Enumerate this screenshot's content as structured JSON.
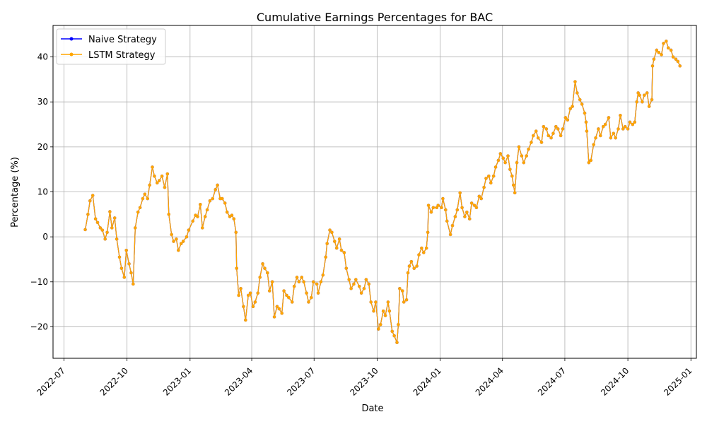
{
  "chart_data": {
    "type": "line",
    "title": "Cumulative Earnings Percentages for BAC",
    "xlabel": "Date",
    "ylabel": "Percentage (%)",
    "xlim": [
      "2022-06-15",
      "2025-01-09"
    ],
    "ylim": [
      -27,
      47
    ],
    "x_ticks": [
      "2022-07",
      "2022-10",
      "2023-01",
      "2023-04",
      "2023-07",
      "2023-10",
      "2024-01",
      "2024-04",
      "2024-07",
      "2024-10",
      "2025-01"
    ],
    "y_ticks": [
      -20,
      -10,
      0,
      10,
      20,
      30,
      40
    ],
    "grid": true,
    "legend_position": "upper-left",
    "series": [
      {
        "name": "Naive Strategy",
        "color": "#0000ff",
        "marker": "circle",
        "points": [
          [
            "2022-08-01",
            1.6
          ],
          [
            "2022-08-05",
            5.0
          ],
          [
            "2022-08-08",
            8.0
          ],
          [
            "2022-08-12",
            9.2
          ],
          [
            "2022-08-16",
            4.0
          ],
          [
            "2022-08-19",
            3.2
          ],
          [
            "2022-08-23",
            2.0
          ],
          [
            "2022-08-26",
            1.5
          ],
          [
            "2022-08-30",
            -0.5
          ],
          [
            "2022-09-02",
            1.0
          ],
          [
            "2022-09-06",
            5.6
          ],
          [
            "2022-09-09",
            2.0
          ],
          [
            "2022-09-13",
            4.2
          ],
          [
            "2022-09-16",
            -0.5
          ],
          [
            "2022-09-20",
            -4.5
          ],
          [
            "2022-09-23",
            -7.0
          ],
          [
            "2022-09-27",
            -9.0
          ],
          [
            "2022-09-30",
            -3.0
          ],
          [
            "2022-10-04",
            -6.0
          ],
          [
            "2022-10-07",
            -8.0
          ],
          [
            "2022-10-10",
            -10.5
          ],
          [
            "2022-10-13",
            2.0
          ],
          [
            "2022-10-17",
            5.5
          ],
          [
            "2022-10-20",
            6.5
          ],
          [
            "2022-10-24",
            8.5
          ],
          [
            "2022-10-27",
            9.5
          ],
          [
            "2022-10-31",
            8.5
          ],
          [
            "2022-11-03",
            11.5
          ],
          [
            "2022-11-07",
            15.5
          ],
          [
            "2022-11-10",
            13.5
          ],
          [
            "2022-11-14",
            12.0
          ],
          [
            "2022-11-17",
            12.5
          ],
          [
            "2022-11-21",
            13.5
          ],
          [
            "2022-11-25",
            11.0
          ],
          [
            "2022-11-29",
            14.0
          ],
          [
            "2022-12-01",
            5.0
          ],
          [
            "2022-12-05",
            0.5
          ],
          [
            "2022-12-08",
            -1.0
          ],
          [
            "2022-12-12",
            -0.5
          ],
          [
            "2022-12-15",
            -3.0
          ],
          [
            "2022-12-19",
            -1.5
          ],
          [
            "2022-12-22",
            -1.0
          ],
          [
            "2022-12-27",
            0.0
          ],
          [
            "2022-12-30",
            1.5
          ],
          [
            "2023-01-05",
            3.5
          ],
          [
            "2023-01-09",
            4.8
          ],
          [
            "2023-01-12",
            4.5
          ],
          [
            "2023-01-16",
            7.2
          ],
          [
            "2023-01-19",
            2.0
          ],
          [
            "2023-01-23",
            4.5
          ],
          [
            "2023-01-26",
            6.0
          ],
          [
            "2023-01-30",
            8.0
          ],
          [
            "2023-02-03",
            8.5
          ],
          [
            "2023-02-07",
            10.5
          ],
          [
            "2023-02-10",
            11.5
          ],
          [
            "2023-02-14",
            8.5
          ],
          [
            "2023-02-17",
            8.5
          ],
          [
            "2023-02-21",
            7.5
          ],
          [
            "2023-02-24",
            5.5
          ],
          [
            "2023-02-28",
            4.5
          ],
          [
            "2023-03-03",
            4.8
          ],
          [
            "2023-03-06",
            4.0
          ],
          [
            "2023-03-09",
            1.0
          ],
          [
            "2023-03-10",
            -7.0
          ],
          [
            "2023-03-13",
            -13.0
          ],
          [
            "2023-03-16",
            -11.5
          ],
          [
            "2023-03-20",
            -15.5
          ],
          [
            "2023-03-23",
            -18.5
          ],
          [
            "2023-03-27",
            -13.0
          ],
          [
            "2023-03-30",
            -12.5
          ],
          [
            "2023-04-03",
            -15.5
          ],
          [
            "2023-04-06",
            -14.5
          ],
          [
            "2023-04-10",
            -12.5
          ],
          [
            "2023-04-13",
            -9.0
          ],
          [
            "2023-04-17",
            -6.0
          ],
          [
            "2023-04-20",
            -7.0
          ],
          [
            "2023-04-24",
            -8.0
          ],
          [
            "2023-04-27",
            -12.0
          ],
          [
            "2023-05-01",
            -10.0
          ],
          [
            "2023-05-04",
            -17.8
          ],
          [
            "2023-05-08",
            -15.5
          ],
          [
            "2023-05-11",
            -16.0
          ],
          [
            "2023-05-15",
            -17.0
          ],
          [
            "2023-05-18",
            -12.0
          ],
          [
            "2023-05-22",
            -13.0
          ],
          [
            "2023-05-25",
            -13.5
          ],
          [
            "2023-05-30",
            -14.5
          ],
          [
            "2023-06-02",
            -11.0
          ],
          [
            "2023-06-06",
            -9.0
          ],
          [
            "2023-06-09",
            -10.0
          ],
          [
            "2023-06-13",
            -9.0
          ],
          [
            "2023-06-16",
            -10.0
          ],
          [
            "2023-06-20",
            -12.5
          ],
          [
            "2023-06-23",
            -14.5
          ],
          [
            "2023-06-27",
            -13.5
          ],
          [
            "2023-06-30",
            -10.0
          ],
          [
            "2023-07-05",
            -10.5
          ],
          [
            "2023-07-07",
            -12.5
          ],
          [
            "2023-07-11",
            -10.0
          ],
          [
            "2023-07-14",
            -8.5
          ],
          [
            "2023-07-18",
            -4.5
          ],
          [
            "2023-07-20",
            -1.5
          ],
          [
            "2023-07-24",
            1.5
          ],
          [
            "2023-07-27",
            1.0
          ],
          [
            "2023-07-31",
            -1.0
          ],
          [
            "2023-08-03",
            -2.5
          ],
          [
            "2023-08-07",
            -0.5
          ],
          [
            "2023-08-10",
            -3.0
          ],
          [
            "2023-08-14",
            -3.5
          ],
          [
            "2023-08-17",
            -7.0
          ],
          [
            "2023-08-21",
            -9.5
          ],
          [
            "2023-08-24",
            -11.5
          ],
          [
            "2023-08-28",
            -10.5
          ],
          [
            "2023-08-31",
            -9.5
          ],
          [
            "2023-09-05",
            -11.0
          ],
          [
            "2023-09-08",
            -12.5
          ],
          [
            "2023-09-12",
            -11.5
          ],
          [
            "2023-09-15",
            -9.5
          ],
          [
            "2023-09-19",
            -10.5
          ],
          [
            "2023-09-22",
            -14.5
          ],
          [
            "2023-09-26",
            -16.5
          ],
          [
            "2023-09-29",
            -14.5
          ],
          [
            "2023-10-03",
            -20.5
          ],
          [
            "2023-10-06",
            -19.5
          ],
          [
            "2023-10-10",
            -16.5
          ],
          [
            "2023-10-13",
            -17.5
          ],
          [
            "2023-10-17",
            -14.5
          ],
          [
            "2023-10-19",
            -16.5
          ],
          [
            "2023-10-23",
            -21.0
          ],
          [
            "2023-10-26",
            -22.0
          ],
          [
            "2023-10-30",
            -23.5
          ],
          [
            "2023-11-01",
            -19.5
          ],
          [
            "2023-11-03",
            -11.5
          ],
          [
            "2023-11-07",
            -12.0
          ],
          [
            "2023-11-09",
            -14.5
          ],
          [
            "2023-11-13",
            -14.0
          ],
          [
            "2023-11-15",
            -8.0
          ],
          [
            "2023-11-17",
            -6.5
          ],
          [
            "2023-11-20",
            -5.5
          ],
          [
            "2023-11-24",
            -7.0
          ],
          [
            "2023-11-28",
            -6.5
          ],
          [
            "2023-12-01",
            -4.0
          ],
          [
            "2023-12-05",
            -2.5
          ],
          [
            "2023-12-08",
            -3.5
          ],
          [
            "2023-12-12",
            -2.5
          ],
          [
            "2023-12-14",
            1.0
          ],
          [
            "2023-12-15",
            7.0
          ],
          [
            "2023-12-19",
            5.5
          ],
          [
            "2023-12-22",
            6.5
          ],
          [
            "2023-12-27",
            6.5
          ],
          [
            "2023-12-29",
            7.0
          ],
          [
            "2024-01-03",
            6.5
          ],
          [
            "2024-01-05",
            8.5
          ],
          [
            "2024-01-09",
            6.0
          ],
          [
            "2024-01-11",
            3.5
          ],
          [
            "2024-01-16",
            0.5
          ],
          [
            "2024-01-19",
            2.5
          ],
          [
            "2024-01-23",
            4.5
          ],
          [
            "2024-01-26",
            6.0
          ],
          [
            "2024-01-30",
            9.8
          ],
          [
            "2024-02-02",
            6.5
          ],
          [
            "2024-02-06",
            4.5
          ],
          [
            "2024-02-09",
            5.5
          ],
          [
            "2024-02-13",
            4.0
          ],
          [
            "2024-02-16",
            7.5
          ],
          [
            "2024-02-20",
            7.0
          ],
          [
            "2024-02-23",
            6.5
          ],
          [
            "2024-02-27",
            9.0
          ],
          [
            "2024-03-01",
            8.5
          ],
          [
            "2024-03-05",
            11.0
          ],
          [
            "2024-03-08",
            13.0
          ],
          [
            "2024-03-12",
            13.5
          ],
          [
            "2024-03-15",
            12.0
          ],
          [
            "2024-03-19",
            13.5
          ],
          [
            "2024-03-22",
            15.5
          ],
          [
            "2024-03-26",
            17.0
          ],
          [
            "2024-03-29",
            18.5
          ],
          [
            "2024-04-02",
            17.5
          ],
          [
            "2024-04-05",
            16.5
          ],
          [
            "2024-04-09",
            18.0
          ],
          [
            "2024-04-12",
            15.0
          ],
          [
            "2024-04-15",
            13.5
          ],
          [
            "2024-04-17",
            11.5
          ],
          [
            "2024-04-19",
            9.8
          ],
          [
            "2024-04-22",
            16.5
          ],
          [
            "2024-04-25",
            20.0
          ],
          [
            "2024-04-29",
            18.0
          ],
          [
            "2024-05-02",
            16.5
          ],
          [
            "2024-05-06",
            18.0
          ],
          [
            "2024-05-09",
            19.5
          ],
          [
            "2024-05-13",
            21.0
          ],
          [
            "2024-05-16",
            22.5
          ],
          [
            "2024-05-20",
            23.5
          ],
          [
            "2024-05-23",
            22.0
          ],
          [
            "2024-05-28",
            21.0
          ],
          [
            "2024-05-31",
            24.5
          ],
          [
            "2024-06-04",
            24.0
          ],
          [
            "2024-06-07",
            22.5
          ],
          [
            "2024-06-11",
            22.0
          ],
          [
            "2024-06-14",
            23.0
          ],
          [
            "2024-06-18",
            24.5
          ],
          [
            "2024-06-21",
            24.0
          ],
          [
            "2024-06-25",
            22.5
          ],
          [
            "2024-06-28",
            24.0
          ],
          [
            "2024-07-02",
            26.5
          ],
          [
            "2024-07-05",
            26.0
          ],
          [
            "2024-07-09",
            28.5
          ],
          [
            "2024-07-12",
            29.0
          ],
          [
            "2024-07-16",
            34.5
          ],
          [
            "2024-07-19",
            32.0
          ],
          [
            "2024-07-23",
            30.5
          ],
          [
            "2024-07-26",
            29.5
          ],
          [
            "2024-07-30",
            27.5
          ],
          [
            "2024-08-01",
            25.5
          ],
          [
            "2024-08-02",
            23.5
          ],
          [
            "2024-08-05",
            16.5
          ],
          [
            "2024-08-08",
            17.0
          ],
          [
            "2024-08-12",
            20.5
          ],
          [
            "2024-08-15",
            22.0
          ],
          [
            "2024-08-19",
            24.0
          ],
          [
            "2024-08-22",
            22.5
          ],
          [
            "2024-08-26",
            24.5
          ],
          [
            "2024-08-29",
            25.0
          ],
          [
            "2024-09-03",
            26.5
          ],
          [
            "2024-09-06",
            22.0
          ],
          [
            "2024-09-10",
            23.0
          ],
          [
            "2024-09-13",
            22.0
          ],
          [
            "2024-09-17",
            24.0
          ],
          [
            "2024-09-20",
            27.0
          ],
          [
            "2024-09-24",
            24.0
          ],
          [
            "2024-09-27",
            24.5
          ],
          [
            "2024-10-01",
            24.0
          ],
          [
            "2024-10-04",
            25.5
          ],
          [
            "2024-10-08",
            25.0
          ],
          [
            "2024-10-11",
            25.5
          ],
          [
            "2024-10-14",
            30.0
          ],
          [
            "2024-10-16",
            32.0
          ],
          [
            "2024-10-18",
            31.5
          ],
          [
            "2024-10-22",
            30.0
          ],
          [
            "2024-10-25",
            31.5
          ],
          [
            "2024-10-29",
            32.0
          ],
          [
            "2024-11-01",
            29.0
          ],
          [
            "2024-11-05",
            30.5
          ],
          [
            "2024-11-06",
            38.0
          ],
          [
            "2024-11-08",
            39.5
          ],
          [
            "2024-11-12",
            41.5
          ],
          [
            "2024-11-15",
            41.0
          ],
          [
            "2024-11-19",
            40.5
          ],
          [
            "2024-11-22",
            43.0
          ],
          [
            "2024-11-26",
            43.5
          ],
          [
            "2024-11-29",
            42.0
          ],
          [
            "2024-12-03",
            41.5
          ],
          [
            "2024-12-06",
            40.0
          ],
          [
            "2024-12-10",
            39.5
          ],
          [
            "2024-12-13",
            39.0
          ],
          [
            "2024-12-16",
            38.0
          ]
        ]
      },
      {
        "name": "LSTM Strategy",
        "color": "#ffa500",
        "marker": "circle",
        "same_as": "Naive Strategy"
      }
    ]
  }
}
